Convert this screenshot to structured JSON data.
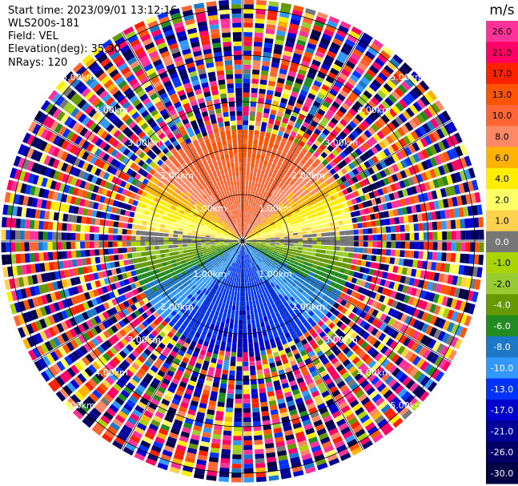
{
  "info": {
    "start_time": "Start time: 2023/09/01 13:12:16",
    "instrument": "WLS200s-181",
    "field": "Field: VEL",
    "elevation": "Elevation(deg): 35.30",
    "nrays": "NRays: 120"
  },
  "chart_data": {
    "type": "heatmap",
    "projection": "polar-ppi",
    "field": "VEL",
    "units": "m/s",
    "nrays": 120,
    "elevation_deg": 35.3,
    "range_rings_km": [
      1,
      2,
      3,
      4,
      5
    ],
    "ring_labels": [
      "1.00km",
      "2.00km",
      "3.00km",
      "4.00km",
      "5.00km"
    ],
    "max_range_km": 5.2,
    "valid_range_km": 2.4,
    "colorbar": {
      "label": "m/s",
      "min": -30,
      "max": 30,
      "levels": [
        {
          "value": 26.0,
          "label": "26.0",
          "color": "#ff3399"
        },
        {
          "value": 21.0,
          "label": "21.0",
          "color": "#ff0066"
        },
        {
          "value": 17.0,
          "label": "17.0",
          "color": "#ff2200"
        },
        {
          "value": 13.0,
          "label": "13.0",
          "color": "#ff5500"
        },
        {
          "value": 10.0,
          "label": "10.0",
          "color": "#ff6633"
        },
        {
          "value": 8.0,
          "label": "8.0",
          "color": "#ff8866"
        },
        {
          "value": 6.0,
          "label": "6.0",
          "color": "#ffb300"
        },
        {
          "value": 4.0,
          "label": "4.0",
          "color": "#ffee00"
        },
        {
          "value": 2.0,
          "label": "2.0",
          "color": "#ffff66"
        },
        {
          "value": 1.0,
          "label": "1.0",
          "color": "#ffd24d"
        },
        {
          "value": 0.0,
          "label": "0.0",
          "color": "#777777"
        },
        {
          "value": -1.0,
          "label": "-1.0",
          "color": "#aad400"
        },
        {
          "value": -2.0,
          "label": "-2.0",
          "color": "#99cc33"
        },
        {
          "value": -4.0,
          "label": "-4.0",
          "color": "#669900"
        },
        {
          "value": -6.0,
          "label": "-6.0",
          "color": "#228b22"
        },
        {
          "value": -8.0,
          "label": "-8.0",
          "color": "#1e78c8"
        },
        {
          "value": -10.0,
          "label": "-10.0",
          "color": "#3399ff"
        },
        {
          "value": -13.0,
          "label": "-13.0",
          "color": "#0033ff"
        },
        {
          "value": -17.0,
          "label": "-17.0",
          "color": "#0000cc"
        },
        {
          "value": -21.0,
          "label": "-21.0",
          "color": "#000099"
        },
        {
          "value": -26.0,
          "label": "-26.0",
          "color": "#000066"
        },
        {
          "value": -30.0,
          "label": "-30.0",
          "color": "#000044"
        }
      ]
    },
    "velocity_pattern": {
      "description_free": true,
      "peak_positive_azimuth_deg": 0,
      "peak_negative_azimuth_deg": 180,
      "max_speed_ms": 14
    }
  }
}
